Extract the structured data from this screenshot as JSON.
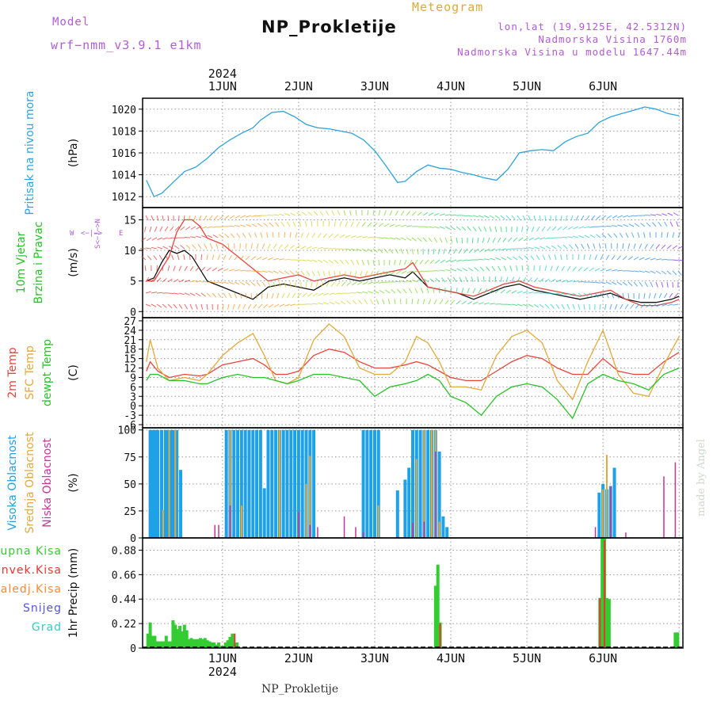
{
  "header": {
    "model_label": "Model",
    "model_name": "wrf−nmm_v3.9.1  e1km",
    "station": "NP_Prokletije",
    "meteogram_label": "Meteogram",
    "lonlat": "lon,lat (19.9125E, 42.5312N)",
    "elevation": "Nadmorska Visina 1760m",
    "model_elevation": "Nadmorska Visina u modelu 1647.44m"
  },
  "footer": {
    "station": "NP_Prokletije",
    "credit": "made by Angel"
  },
  "colors": {
    "pressure": "#2ea3dd",
    "temp2m": "#e8453c",
    "sfc": "#e3a93a",
    "dewpt": "#27c327",
    "visoka": "#1ea1e6",
    "srednja": "#e0a93e",
    "niska": "#cc3399",
    "total": "#33cc33",
    "convective": "#ee3333",
    "freezing": "#ff8833",
    "snow": "#5555dd",
    "hail": "#33cccc"
  },
  "chart_data": [
    {
      "type": "line",
      "ylabel": "(hPa)",
      "side_labels": [
        "Pritisak na nivou mora"
      ],
      "top_year": "2024",
      "x_ticks": [
        "1JUN",
        "2JUN",
        "3JUN",
        "4JUN",
        "5JUN",
        "6JUN"
      ],
      "ylim": [
        1011,
        1021
      ],
      "y_ticks": [
        1012,
        1014,
        1016,
        1018,
        1020
      ],
      "grid": true,
      "series": [
        {
          "name": "Pritisak na nivou mora",
          "x": [
            -0.5,
            -0.4,
            -0.3,
            -0.15,
            0.0,
            0.15,
            0.3,
            0.45,
            0.6,
            0.75,
            0.9,
            1.0,
            1.15,
            1.3,
            1.45,
            1.6,
            1.75,
            1.9,
            2.05,
            2.2,
            2.35,
            2.5,
            2.65,
            2.8,
            2.9,
            3.05,
            3.2,
            3.35,
            3.5,
            3.65,
            3.8,
            3.95,
            4.1,
            4.25,
            4.4,
            4.55,
            4.7,
            4.85,
            5.0,
            5.15,
            5.3,
            5.45,
            5.6,
            5.75,
            5.9,
            6.05,
            6.2,
            6.35,
            6.5
          ],
          "y": [
            1013.5,
            1012.0,
            1012.3,
            1013.3,
            1014.3,
            1014.7,
            1015.5,
            1016.5,
            1017.2,
            1017.8,
            1018.3,
            1019.0,
            1019.7,
            1019.8,
            1019.3,
            1018.6,
            1018.3,
            1018.2,
            1018.0,
            1017.8,
            1017.2,
            1016.2,
            1014.8,
            1013.3,
            1013.4,
            1014.3,
            1014.9,
            1014.6,
            1014.5,
            1014.2,
            1014.0,
            1013.7,
            1013.5,
            1014.5,
            1016.0,
            1016.2,
            1016.3,
            1016.2,
            1017.0,
            1017.5,
            1017.8,
            1018.8,
            1019.3,
            1019.6,
            1019.9,
            1020.2,
            1020.0,
            1019.6,
            1019.4
          ]
        }
      ]
    },
    {
      "type": "line",
      "ylabel": "(m/s)",
      "side_labels": [
        "10m Vjetar",
        "Brzina i Pravac"
      ],
      "direction_legend": [
        "W",
        "<−|−>",
        "E",
        "S<−|−>N"
      ],
      "ylim": [
        -1,
        17
      ],
      "y_ticks": [
        0,
        5,
        10,
        15
      ],
      "grid": true,
      "series": [
        {
          "name": "speed",
          "color": "#111111",
          "x": [
            -0.5,
            -0.4,
            -0.3,
            -0.2,
            -0.1,
            0.0,
            0.1,
            0.2,
            0.3,
            0.5,
            0.7,
            0.9,
            1.1,
            1.3,
            1.5,
            1.7,
            1.9,
            2.1,
            2.3,
            2.5,
            2.7,
            2.9,
            3.0,
            3.2,
            3.4,
            3.6,
            3.8,
            4.0,
            4.2,
            4.4,
            4.6,
            4.8,
            5.0,
            5.2,
            5.4,
            5.6,
            5.8,
            6.0,
            6.2,
            6.4,
            6.5
          ],
          "y": [
            5.0,
            5.5,
            8.0,
            10.0,
            9.5,
            10.0,
            9.0,
            7.0,
            5.0,
            4.0,
            3.0,
            2.0,
            4.0,
            4.5,
            4.0,
            3.5,
            5.0,
            5.5,
            5.0,
            5.5,
            6.0,
            5.5,
            6.5,
            4.0,
            3.5,
            3.0,
            2.0,
            3.0,
            4.0,
            4.5,
            3.5,
            3.0,
            2.5,
            2.0,
            2.5,
            3.0,
            2.0,
            1.5,
            1.5,
            2.0,
            2.5
          ]
        },
        {
          "name": "gust",
          "color": "#e8453c",
          "x": [
            -0.5,
            -0.4,
            -0.3,
            -0.2,
            -0.1,
            0.0,
            0.1,
            0.2,
            0.3,
            0.5,
            0.7,
            0.9,
            1.1,
            1.3,
            1.5,
            1.7,
            1.9,
            2.1,
            2.3,
            2.5,
            2.7,
            2.9,
            3.0,
            3.2,
            3.4,
            3.6,
            3.8,
            4.0,
            4.2,
            4.4,
            4.6,
            4.8,
            5.0,
            5.2,
            5.4,
            5.6,
            5.8,
            6.0,
            6.2,
            6.4,
            6.5
          ],
          "y": [
            5.0,
            5.0,
            7.0,
            9.0,
            13.0,
            15.0,
            15.0,
            14.0,
            12.0,
            11.0,
            9.0,
            7.0,
            5.0,
            5.5,
            6.0,
            5.0,
            5.5,
            6.0,
            5.5,
            6.0,
            6.5,
            7.0,
            8.0,
            4.0,
            3.5,
            3.0,
            2.5,
            3.5,
            4.5,
            5.0,
            4.0,
            3.5,
            3.0,
            2.5,
            3.0,
            3.5,
            2.0,
            1.0,
            1.0,
            1.5,
            2.0
          ]
        }
      ]
    },
    {
      "type": "line",
      "ylabel": "(C)",
      "side_labels": [
        "2m Temp",
        "SFC Temp",
        "dewpt Temp"
      ],
      "ylim": [
        -7,
        28
      ],
      "y_ticks": [
        -6,
        -3,
        0,
        3,
        6,
        9,
        12,
        15,
        18,
        21,
        24,
        27
      ],
      "grid": true,
      "series": [
        {
          "name": "2m Temp",
          "x": [
            -0.5,
            -0.45,
            -0.35,
            -0.2,
            0.0,
            0.2,
            0.3,
            0.5,
            0.7,
            0.9,
            1.05,
            1.2,
            1.35,
            1.5,
            1.7,
            1.9,
            2.1,
            2.3,
            2.5,
            2.7,
            2.9,
            3.05,
            3.2,
            3.35,
            3.5,
            3.7,
            3.9,
            4.1,
            4.3,
            4.5,
            4.7,
            4.9,
            5.1,
            5.3,
            5.5,
            5.7,
            5.9,
            6.1,
            6.3,
            6.5
          ],
          "y": [
            11,
            14,
            11,
            9,
            10,
            9.5,
            10,
            13,
            14,
            15,
            13,
            10,
            10,
            11,
            16,
            18,
            17,
            14,
            12,
            12,
            13,
            14,
            13,
            11,
            9,
            8,
            8,
            11,
            14,
            16,
            15,
            12,
            10,
            10,
            15,
            11,
            10,
            10,
            14,
            17
          ]
        },
        {
          "name": "SFC Temp",
          "x": [
            -0.5,
            -0.45,
            -0.35,
            -0.2,
            0.0,
            0.2,
            0.3,
            0.5,
            0.7,
            0.9,
            1.05,
            1.2,
            1.35,
            1.5,
            1.7,
            1.9,
            2.1,
            2.3,
            2.5,
            2.7,
            2.9,
            3.05,
            3.2,
            3.35,
            3.5,
            3.7,
            3.9,
            4.1,
            4.3,
            4.5,
            4.7,
            4.9,
            5.1,
            5.3,
            5.5,
            5.7,
            5.9,
            6.1,
            6.3,
            6.5
          ],
          "y": [
            14,
            21,
            12,
            8,
            9,
            8,
            10,
            16,
            20,
            23,
            16,
            8,
            7,
            9,
            21,
            26,
            22,
            12,
            10,
            10,
            14,
            22,
            20,
            14,
            6,
            6,
            5,
            16,
            22,
            24,
            20,
            8,
            2,
            14,
            24,
            10,
            4,
            3,
            13,
            22
          ]
        },
        {
          "name": "dewpt Temp",
          "x": [
            -0.5,
            -0.45,
            -0.35,
            -0.2,
            0.0,
            0.2,
            0.3,
            0.5,
            0.7,
            0.9,
            1.05,
            1.2,
            1.35,
            1.5,
            1.7,
            1.9,
            2.1,
            2.3,
            2.5,
            2.7,
            2.9,
            3.05,
            3.2,
            3.35,
            3.5,
            3.7,
            3.9,
            4.1,
            4.3,
            4.5,
            4.7,
            4.9,
            5.1,
            5.3,
            5.5,
            5.7,
            5.9,
            6.1,
            6.3,
            6.5
          ],
          "y": [
            8,
            10,
            10,
            8,
            8,
            7,
            7,
            9,
            10,
            9,
            9,
            8,
            7,
            8,
            10,
            10,
            9,
            8,
            3,
            6,
            7,
            8,
            10,
            8,
            3,
            1,
            -3,
            3,
            6,
            7,
            6,
            2,
            -4,
            7,
            10,
            8,
            7,
            5,
            10,
            12
          ]
        }
      ]
    },
    {
      "type": "bar",
      "ylabel": "(%)",
      "side_labels": [
        "Visoka Oblacnost",
        "Srednja Oblacnost",
        "Niska Oblacnost"
      ],
      "ylim": [
        0,
        102
      ],
      "y_ticks": [
        0,
        25,
        50,
        75,
        100
      ],
      "grid": true,
      "series": [
        {
          "name": "Visoka Oblacnost",
          "x": [
            -0.45,
            -0.42,
            -0.38,
            -0.35,
            -0.3,
            -0.25,
            -0.22,
            -0.18,
            -0.15,
            -0.1,
            -0.05,
            0.55,
            0.6,
            0.65,
            0.7,
            0.75,
            0.8,
            0.85,
            0.9,
            0.95,
            1.0,
            1.05,
            1.1,
            1.15,
            1.2,
            1.25,
            1.3,
            1.35,
            1.4,
            1.45,
            1.5,
            1.55,
            1.6,
            1.65,
            1.7,
            2.35,
            2.4,
            2.45,
            2.5,
            2.55,
            2.8,
            2.9,
            2.95,
            3.0,
            3.05,
            3.1,
            3.15,
            3.2,
            3.25,
            3.3,
            3.35,
            3.4,
            3.45,
            5.45,
            5.5,
            5.55,
            5.6,
            5.65
          ],
          "y": [
            100,
            100,
            100,
            100,
            100,
            100,
            100,
            100,
            100,
            100,
            63,
            100,
            100,
            100,
            100,
            100,
            100,
            100,
            100,
            100,
            100,
            46,
            100,
            100,
            100,
            100,
            100,
            100,
            100,
            100,
            100,
            100,
            100,
            100,
            100,
            100,
            100,
            100,
            100,
            100,
            44,
            54,
            65,
            100,
            100,
            100,
            100,
            100,
            100,
            100,
            80,
            20,
            10,
            42,
            50,
            45,
            48,
            65
          ]
        },
        {
          "name": "Srednja Oblacnost",
          "x": [
            -0.28,
            -0.2,
            -0.12,
            0.6,
            0.75,
            1.25,
            1.6,
            1.65,
            2.55,
            3.05,
            3.15,
            3.25,
            3.3,
            3.35,
            5.5,
            5.55
          ],
          "y": [
            26,
            100,
            100,
            100,
            30,
            100,
            50,
            76,
            30,
            73,
            100,
            100,
            100,
            15,
            45,
            77
          ]
        },
        {
          "name": "Niska Oblacnost",
          "x": [
            0.4,
            0.45,
            0.6,
            1.5,
            1.65,
            1.75,
            2.1,
            2.25,
            2.35,
            3.0,
            3.15,
            3.3,
            5.4,
            5.6,
            5.8,
            6.3,
            6.45
          ],
          "y": [
            12,
            12,
            30,
            24,
            12,
            10,
            20,
            10,
            5,
            14,
            15,
            80,
            10,
            48,
            5,
            57,
            70
          ]
        }
      ]
    },
    {
      "type": "bar",
      "ylabel": "1hr Precip (mm)",
      "side_labels": [
        "Ukupna Kisa",
        "Konvek.Kisa",
        "Zaledj.Kisa",
        "Snijeg",
        "Grad"
      ],
      "bottom_year": "2024",
      "x_ticks": [
        "1JUN",
        "2JUN",
        "3JUN",
        "4JUN",
        "5JUN",
        "6JUN"
      ],
      "ylim": [
        0,
        0.99
      ],
      "y_ticks": [
        0,
        0.22,
        0.44,
        0.66,
        0.88
      ],
      "grid": true,
      "series": [
        {
          "name": "Ukupna Kisa",
          "x": [
            -0.48,
            -0.45,
            -0.42,
            -0.39,
            -0.36,
            -0.33,
            -0.3,
            -0.27,
            -0.24,
            -0.21,
            -0.18,
            -0.15,
            -0.12,
            -0.09,
            -0.06,
            -0.03,
            0.0,
            0.03,
            0.06,
            0.09,
            0.12,
            0.15,
            0.18,
            0.21,
            0.24,
            0.27,
            0.3,
            0.33,
            0.36,
            0.39,
            0.42,
            0.45,
            0.48,
            0.51,
            0.54,
            0.57,
            0.6,
            0.63,
            0.66,
            0.69,
            3.3,
            3.33,
            3.36,
            3.39,
            5.46,
            5.49,
            5.52,
            5.55,
            5.58,
            6.45,
            6.48
          ],
          "y": [
            0.13,
            0.23,
            0.11,
            0.11,
            0.06,
            0.06,
            0.06,
            0.06,
            0.11,
            0.06,
            0.06,
            0.25,
            0.21,
            0.17,
            0.2,
            0.15,
            0.21,
            0.16,
            0.08,
            0.09,
            0.08,
            0.08,
            0.08,
            0.09,
            0.08,
            0.09,
            0.07,
            0.06,
            0.05,
            0.05,
            0.03,
            0.05,
            0.02,
            0.02,
            0.05,
            0.07,
            0.1,
            0.13,
            0.04,
            0.05,
            0.56,
            0.75,
            0.23,
            0.0,
            0.45,
            1.0,
            1.0,
            0.45,
            0.44,
            0.14,
            0.14
          ]
        },
        {
          "name": "Konvek.Kisa",
          "x": [
            0.66,
            3.36,
            5.46,
            5.52
          ],
          "y": [
            0.13,
            0.22,
            0.45,
            0.97
          ]
        }
      ]
    }
  ]
}
